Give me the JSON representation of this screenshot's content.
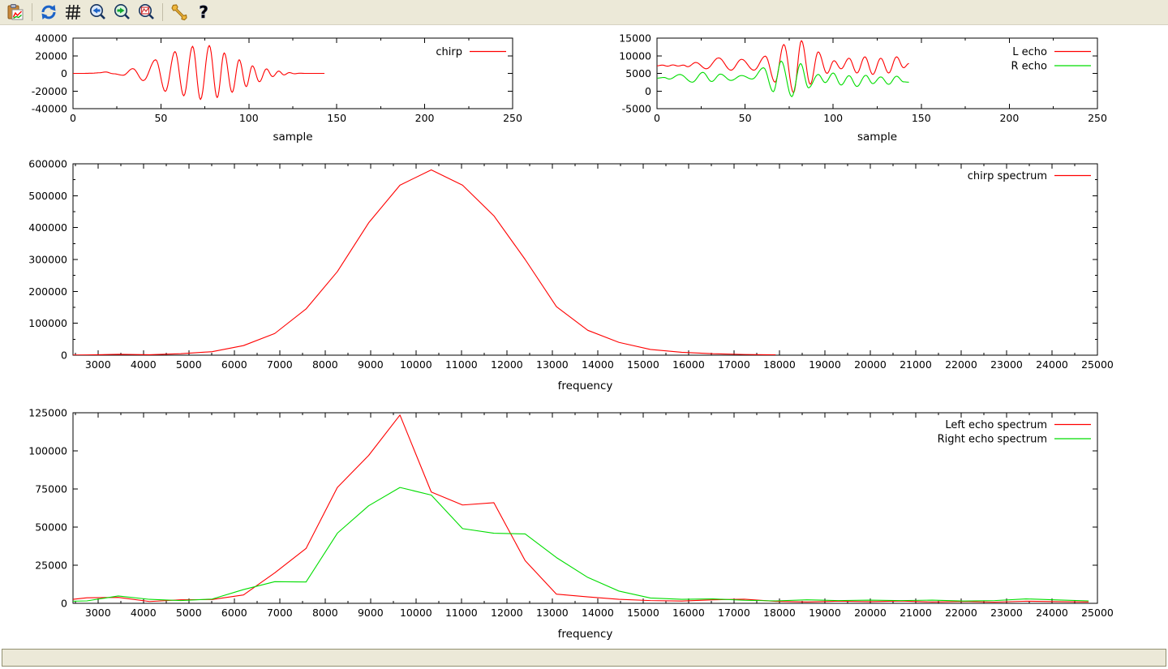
{
  "window": {
    "background": "#ffffff",
    "chrome_color": "#ece9d8"
  },
  "colors": {
    "red": "#ff0000",
    "green": "#00dd00",
    "axis": "#000000",
    "toolbar_bg": "#ece9d8"
  },
  "toolbar": {
    "buttons": [
      {
        "name": "copy-to-clipboard",
        "icon": "clipboard-chart-icon"
      },
      {
        "name": "replot",
        "icon": "refresh-icon"
      },
      {
        "name": "toggle-grid",
        "icon": "grid-icon"
      },
      {
        "name": "zoom-previous",
        "icon": "magnifier-left-arrow-icon"
      },
      {
        "name": "zoom-next",
        "icon": "magnifier-right-arrow-icon"
      },
      {
        "name": "autoscale",
        "icon": "magnifier-plot-icon"
      },
      {
        "name": "configure",
        "icon": "wrench-icon"
      },
      {
        "name": "help",
        "icon": "question-mark-icon"
      }
    ]
  },
  "status_bar": {
    "text": ""
  },
  "chart_data": [
    {
      "id": "chirp-time",
      "type": "line",
      "title": "",
      "xlabel": "sample",
      "ylabel": "",
      "xlim": [
        0,
        250
      ],
      "ylim": [
        -40000,
        40000
      ],
      "xticks": [
        0,
        50,
        100,
        150,
        200,
        250
      ],
      "yticks": [
        -40000,
        -20000,
        0,
        20000,
        40000
      ],
      "xminor_step": 25,
      "yminor_step": 0,
      "grid": false,
      "legend": {
        "position": "top-right",
        "entries": [
          {
            "label": "chirp",
            "color": "#ff0000"
          }
        ]
      },
      "series": [
        {
          "name": "chirp",
          "color": "#ff0000",
          "interp": "halfwave",
          "points": [
            [
              0,
              0
            ],
            [
              6,
              0
            ],
            [
              11,
              200
            ],
            [
              15,
              700
            ],
            [
              18.5,
              1600
            ],
            [
              23,
              -400
            ],
            [
              28.5,
              -2100
            ],
            [
              34,
              5400
            ],
            [
              40,
              -8200
            ],
            [
              47,
              15500
            ],
            [
              52.5,
              -20500
            ],
            [
              58,
              24800
            ],
            [
              63,
              -25500
            ],
            [
              68,
              30800
            ],
            [
              72.5,
              -29700
            ],
            [
              77.5,
              31700
            ],
            [
              82,
              -27500
            ],
            [
              86,
              23300
            ],
            [
              90.5,
              -21500
            ],
            [
              94.5,
              15500
            ],
            [
              98.5,
              -15000
            ],
            [
              102,
              8600
            ],
            [
              106,
              -9500
            ],
            [
              110,
              5100
            ],
            [
              113.5,
              -3600
            ],
            [
              117,
              2600
            ],
            [
              120,
              -1700
            ],
            [
              123,
              900
            ],
            [
              126,
              -400
            ],
            [
              129,
              200
            ],
            [
              132,
              0
            ],
            [
              143,
              0
            ]
          ]
        }
      ]
    },
    {
      "id": "echo-time",
      "type": "line",
      "title": "",
      "xlabel": "sample",
      "ylabel": "",
      "xlim": [
        0,
        250
      ],
      "ylim": [
        -5000,
        15000
      ],
      "xticks": [
        0,
        50,
        100,
        150,
        200,
        250
      ],
      "yticks": [
        -5000,
        0,
        5000,
        10000,
        15000
      ],
      "xminor_step": 25,
      "yminor_step": 0,
      "grid": false,
      "legend": {
        "position": "top-right",
        "entries": [
          {
            "label": "L echo",
            "color": "#ff0000"
          },
          {
            "label": "R echo",
            "color": "#00dd00"
          }
        ]
      },
      "series": [
        {
          "name": "L echo",
          "color": "#ff0000",
          "interp": "halfwave",
          "points": [
            [
              0,
              7150
            ],
            [
              3,
              7350
            ],
            [
              6,
              7050
            ],
            [
              9,
              7400
            ],
            [
              12,
              7100
            ],
            [
              15,
              7350
            ],
            [
              17.5,
              6900
            ],
            [
              22,
              8100
            ],
            [
              28,
              6300
            ],
            [
              35,
              9400
            ],
            [
              42,
              5900
            ],
            [
              48,
              9000
            ],
            [
              55,
              5900
            ],
            [
              61.5,
              9900
            ],
            [
              67,
              2500
            ],
            [
              72,
              13200
            ],
            [
              77.5,
              -500
            ],
            [
              82,
              14300
            ],
            [
              87,
              1900
            ],
            [
              91.5,
              11100
            ],
            [
              96.5,
              5000
            ],
            [
              100.5,
              8600
            ],
            [
              104.5,
              6300
            ],
            [
              109,
              9300
            ],
            [
              113.5,
              5100
            ],
            [
              118,
              9700
            ],
            [
              122.5,
              4700
            ],
            [
              127,
              9300
            ],
            [
              131.5,
              5100
            ],
            [
              136,
              9700
            ],
            [
              140,
              6600
            ],
            [
              143,
              7800
            ]
          ]
        },
        {
          "name": "R echo",
          "color": "#00dd00",
          "interp": "halfwave",
          "points": [
            [
              0,
              3650
            ],
            [
              4,
              3850
            ],
            [
              7,
              3400
            ],
            [
              13,
              4700
            ],
            [
              20,
              2500
            ],
            [
              26,
              5300
            ],
            [
              31,
              2700
            ],
            [
              36,
              4800
            ],
            [
              42,
              3000
            ],
            [
              48,
              4400
            ],
            [
              54,
              3400
            ],
            [
              60.5,
              6600
            ],
            [
              66,
              -200
            ],
            [
              70.5,
              8500
            ],
            [
              76.5,
              -1600
            ],
            [
              81.5,
              7800
            ],
            [
              86,
              900
            ],
            [
              91.5,
              4700
            ],
            [
              95.5,
              2400
            ],
            [
              100,
              5100
            ],
            [
              104.5,
              1700
            ],
            [
              109,
              4350
            ],
            [
              113.5,
              1300
            ],
            [
              118.5,
              4450
            ],
            [
              122.5,
              2100
            ],
            [
              127,
              4000
            ],
            [
              131.5,
              1900
            ],
            [
              136,
              4200
            ],
            [
              140,
              2600
            ],
            [
              143,
              2500
            ]
          ]
        }
      ]
    },
    {
      "id": "chirp-spectrum",
      "type": "line",
      "title": "",
      "xlabel": "frequency",
      "ylabel": "",
      "xlim": [
        2450,
        25000
      ],
      "ylim": [
        0,
        600000
      ],
      "xticks": [
        3000,
        4000,
        5000,
        6000,
        7000,
        8000,
        9000,
        10000,
        11000,
        12000,
        13000,
        14000,
        15000,
        16000,
        17000,
        18000,
        19000,
        20000,
        21000,
        22000,
        23000,
        24000,
        25000
      ],
      "yticks": [
        0,
        100000,
        200000,
        300000,
        400000,
        500000,
        600000
      ],
      "xminor_step": 500,
      "yminor_step": 50000,
      "grid": false,
      "legend": {
        "position": "top-right",
        "entries": [
          {
            "label": "chirp spectrum",
            "color": "#ff0000"
          }
        ]
      },
      "series": [
        {
          "name": "chirp spectrum",
          "color": "#ff0000",
          "interp": "linear",
          "points": [
            [
              2450,
              600
            ],
            [
              2756,
              800
            ],
            [
              3445,
              2600
            ],
            [
              4134,
              1500
            ],
            [
              4823,
              4500
            ],
            [
              5512,
              11000
            ],
            [
              6202,
              30000
            ],
            [
              6891,
              68000
            ],
            [
              7580,
              145000
            ],
            [
              8269,
              262000
            ],
            [
              8958,
              415000
            ],
            [
              9647,
              533000
            ],
            [
              10336,
              581000
            ],
            [
              11025,
              533000
            ],
            [
              11714,
              437000
            ],
            [
              12403,
              300000
            ],
            [
              13092,
              152000
            ],
            [
              13781,
              78000
            ],
            [
              14470,
              40000
            ],
            [
              15159,
              18000
            ],
            [
              15849,
              9000
            ],
            [
              16538,
              4500
            ],
            [
              17227,
              2200
            ],
            [
              17916,
              1000
            ]
          ]
        }
      ]
    },
    {
      "id": "echo-spectrum",
      "type": "line",
      "title": "",
      "xlabel": "frequency",
      "ylabel": "",
      "xlim": [
        2450,
        25000
      ],
      "ylim": [
        0,
        125000
      ],
      "xticks": [
        3000,
        4000,
        5000,
        6000,
        7000,
        8000,
        9000,
        10000,
        11000,
        12000,
        13000,
        14000,
        15000,
        16000,
        17000,
        18000,
        19000,
        20000,
        21000,
        22000,
        23000,
        24000,
        25000
      ],
      "yticks": [
        0,
        25000,
        50000,
        75000,
        100000,
        125000
      ],
      "xminor_step": 500,
      "yminor_step": 0,
      "grid": false,
      "legend": {
        "position": "top-right",
        "entries": [
          {
            "label": "Left echo spectrum",
            "color": "#ff0000"
          },
          {
            "label": "Right echo spectrum",
            "color": "#00dd00"
          }
        ]
      },
      "series": [
        {
          "name": "Left echo spectrum",
          "color": "#ff0000",
          "interp": "linear",
          "points": [
            [
              2450,
              2600
            ],
            [
              2756,
              3600
            ],
            [
              3445,
              3900
            ],
            [
              4134,
              1200
            ],
            [
              4823,
              2300
            ],
            [
              5512,
              2500
            ],
            [
              6202,
              5500
            ],
            [
              6891,
              20000
            ],
            [
              7580,
              36000
            ],
            [
              8269,
              76000
            ],
            [
              8958,
              97000
            ],
            [
              9647,
              123500
            ],
            [
              10336,
              73000
            ],
            [
              11025,
              64500
            ],
            [
              11714,
              66000
            ],
            [
              12403,
              28000
            ],
            [
              13092,
              6000
            ],
            [
              13781,
              4200
            ],
            [
              14470,
              2600
            ],
            [
              15159,
              1800
            ],
            [
              15849,
              1500
            ],
            [
              16538,
              2300
            ],
            [
              17227,
              2700
            ],
            [
              17916,
              1300
            ],
            [
              18605,
              900
            ],
            [
              19294,
              1400
            ],
            [
              19983,
              1100
            ],
            [
              20672,
              1500
            ],
            [
              21361,
              900
            ],
            [
              22050,
              1200
            ],
            [
              22739,
              800
            ],
            [
              23428,
              1400
            ],
            [
              24117,
              1100
            ],
            [
              24806,
              900
            ]
          ]
        },
        {
          "name": "Right echo spectrum",
          "color": "#00dd00",
          "interp": "linear",
          "points": [
            [
              2450,
              1400
            ],
            [
              2756,
              1600
            ],
            [
              3445,
              4800
            ],
            [
              4134,
              2600
            ],
            [
              4823,
              1800
            ],
            [
              5512,
              2800
            ],
            [
              6202,
              9000
            ],
            [
              6891,
              14200
            ],
            [
              7580,
              14000
            ],
            [
              8269,
              46000
            ],
            [
              8958,
              64000
            ],
            [
              9647,
              76000
            ],
            [
              10336,
              71000
            ],
            [
              11025,
              49000
            ],
            [
              11714,
              46000
            ],
            [
              12403,
              45500
            ],
            [
              13092,
              30000
            ],
            [
              13781,
              17000
            ],
            [
              14470,
              8000
            ],
            [
              15159,
              3500
            ],
            [
              15849,
              2600
            ],
            [
              16538,
              2900
            ],
            [
              17227,
              2000
            ],
            [
              17916,
              1600
            ],
            [
              18605,
              2300
            ],
            [
              19294,
              1800
            ],
            [
              19983,
              2100
            ],
            [
              20672,
              1800
            ],
            [
              21361,
              2100
            ],
            [
              22050,
              1500
            ],
            [
              22739,
              1800
            ],
            [
              23428,
              2900
            ],
            [
              24117,
              2200
            ],
            [
              24806,
              1600
            ]
          ]
        }
      ]
    }
  ]
}
